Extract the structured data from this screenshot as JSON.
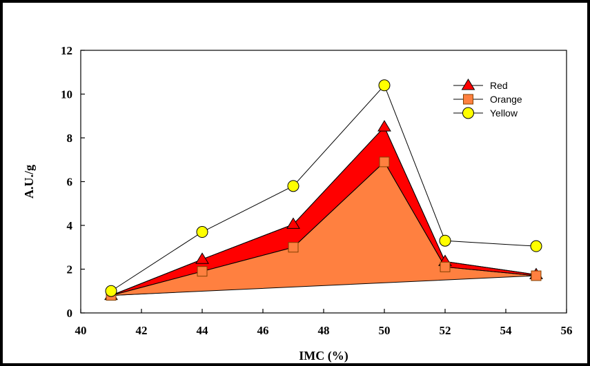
{
  "chart_data": {
    "type": "line",
    "xlabel": "IMC (%)",
    "ylabel": "A.U./g",
    "xlim": [
      40,
      56
    ],
    "ylim": [
      0,
      12
    ],
    "xticks": [
      40,
      42,
      44,
      46,
      48,
      50,
      52,
      54,
      56
    ],
    "yticks": [
      0,
      2,
      4,
      6,
      8,
      10,
      12
    ],
    "x": [
      41,
      44,
      47,
      50,
      52,
      55
    ],
    "series": [
      {
        "name": "Red",
        "marker": "triangle",
        "fill": "#ff0000",
        "values": [
          0.8,
          2.45,
          4.05,
          8.5,
          2.35,
          1.75
        ]
      },
      {
        "name": "Orange",
        "marker": "square",
        "fill": "#ff8040",
        "values": [
          0.8,
          1.9,
          3.0,
          6.9,
          2.1,
          1.7
        ]
      },
      {
        "name": "Yellow",
        "marker": "circle",
        "fill": "#ffff00",
        "values": [
          1.0,
          3.7,
          5.8,
          10.4,
          3.3,
          3.05
        ]
      }
    ],
    "legend_position": "top-right",
    "grid": false,
    "colors": {
      "red_area": "#ff0000",
      "orange_area": "#ff8040",
      "yellow_marker": "#ffff00",
      "marker_stroke": "#804000"
    }
  }
}
